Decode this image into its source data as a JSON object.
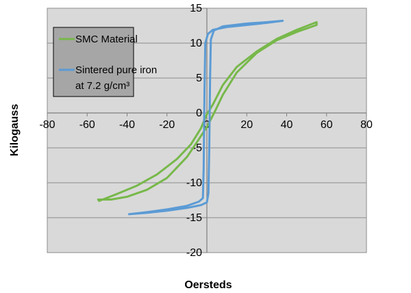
{
  "chart_data": {
    "type": "line",
    "title": "",
    "xlabel": "Oersteds",
    "ylabel": "Kilogauss",
    "xlim": [
      -80,
      80
    ],
    "ylim": [
      -20,
      15
    ],
    "x_ticks": [
      "-80",
      "-60",
      "-40",
      "-20",
      "0",
      "20",
      "40",
      "60",
      "80"
    ],
    "y_ticks": [
      "15",
      "10",
      "5",
      "0",
      "-5",
      "-10",
      "-15",
      "-20"
    ],
    "grid": "horizontal",
    "plot_background": "#d9d9d9",
    "legend_position": "top-left",
    "legend_background": "#a6a6a6",
    "series": [
      {
        "name": "SMC Material",
        "color": "#77b84a",
        "points": [
          [
            -54.5,
            -12.4
          ],
          [
            -54,
            -12.6
          ],
          [
            -45,
            -11.6
          ],
          [
            -35,
            -10.4
          ],
          [
            -25,
            -8.8
          ],
          [
            -15,
            -6.6
          ],
          [
            -8,
            -4.5
          ],
          [
            -3,
            -2.2
          ],
          [
            0,
            -0.2
          ],
          [
            3,
            1.2
          ],
          [
            8,
            4
          ],
          [
            15,
            6.6
          ],
          [
            25,
            8.8
          ],
          [
            35,
            10.6
          ],
          [
            45,
            11.9
          ],
          [
            55,
            13
          ],
          [
            55,
            12.6
          ],
          [
            45,
            11.6
          ],
          [
            35,
            10.4
          ],
          [
            25,
            8.6
          ],
          [
            15,
            5.8
          ],
          [
            8,
            2.6
          ],
          [
            4,
            0.2
          ],
          [
            0,
            -2
          ],
          [
            -5,
            -4.2
          ],
          [
            -10,
            -6.3
          ],
          [
            -20,
            -9.3
          ],
          [
            -30,
            -11
          ],
          [
            -40,
            -12
          ],
          [
            -48,
            -12.4
          ],
          [
            -54.5,
            -12.4
          ]
        ]
      },
      {
        "name": "Sintered pure iron at 7.2 g/cm³",
        "legend_lines": [
          "Sintered pure iron",
          "at 7.2 g/cm³"
        ],
        "color": "#5b9bd5",
        "points": [
          [
            -39,
            -14.5
          ],
          [
            -30,
            -14.3
          ],
          [
            -20,
            -14
          ],
          [
            -10,
            -13.6
          ],
          [
            -3,
            -13.2
          ],
          [
            0,
            -12.8
          ],
          [
            0.8,
            -11.5
          ],
          [
            1.2,
            -5
          ],
          [
            1.6,
            5
          ],
          [
            2,
            10.5
          ],
          [
            3.5,
            11.8
          ],
          [
            8,
            12.4
          ],
          [
            20,
            12.8
          ],
          [
            30,
            13
          ],
          [
            38,
            13.2
          ],
          [
            30,
            12.9
          ],
          [
            20,
            12.6
          ],
          [
            10,
            12.3
          ],
          [
            3,
            11.9
          ],
          [
            0.5,
            11.3
          ],
          [
            -0.8,
            10
          ],
          [
            -1.2,
            3
          ],
          [
            -1.6,
            -8
          ],
          [
            -2,
            -12.2
          ],
          [
            -4,
            -12.7
          ],
          [
            -10,
            -13.3
          ],
          [
            -20,
            -13.8
          ],
          [
            -30,
            -14.2
          ],
          [
            -39,
            -14.5
          ]
        ]
      }
    ]
  }
}
